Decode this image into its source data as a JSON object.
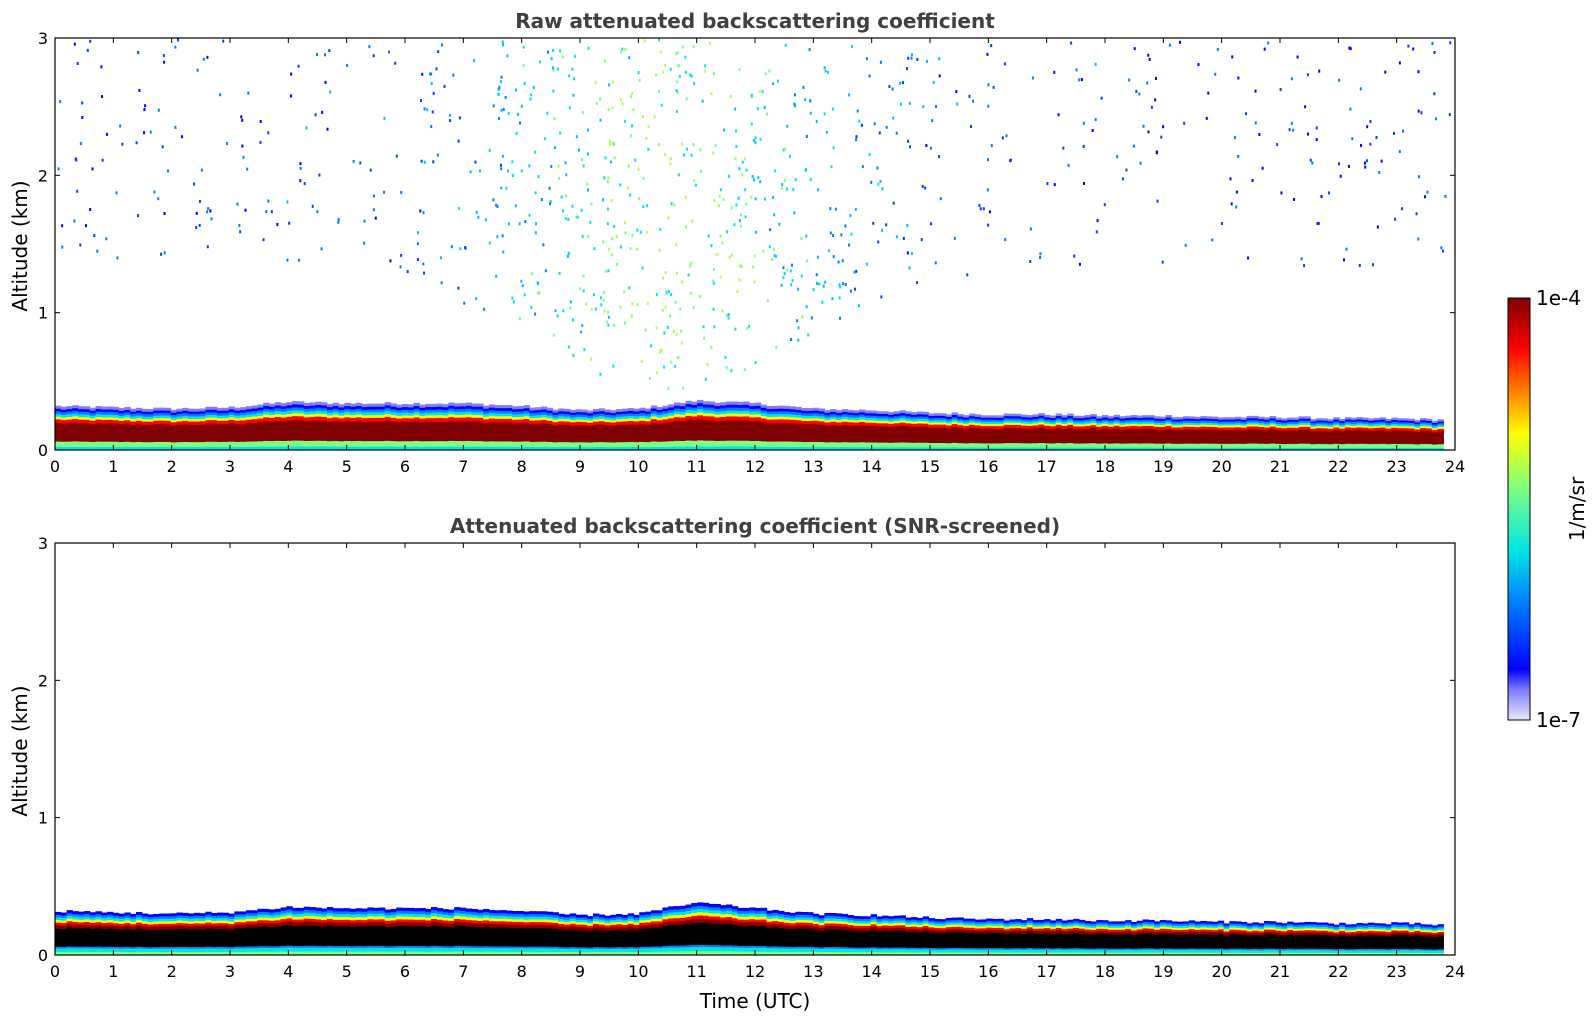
{
  "chart_data": [
    {
      "type": "heatmap",
      "title": "Raw attenuated backscattering coefficient",
      "xlabel": "",
      "ylabel": "Altitude (km)",
      "xlim": [
        0,
        24
      ],
      "ylim": [
        0,
        3
      ],
      "xticks": [
        "0",
        "1",
        "2",
        "3",
        "4",
        "5",
        "6",
        "7",
        "8",
        "9",
        "10",
        "11",
        "12",
        "13",
        "14",
        "15",
        "16",
        "17",
        "18",
        "19",
        "20",
        "21",
        "22",
        "23",
        "24"
      ],
      "yticks": [
        "0",
        "1",
        "2",
        "3"
      ],
      "layer_profile": {
        "time": [
          0,
          1,
          2,
          3,
          4,
          5,
          6,
          7,
          8,
          9,
          10,
          11,
          12,
          13,
          14,
          15,
          16,
          17,
          18,
          19,
          20,
          21,
          22,
          23,
          23.8
        ],
        "top_km": [
          0.32,
          0.31,
          0.3,
          0.31,
          0.35,
          0.34,
          0.34,
          0.34,
          0.32,
          0.29,
          0.3,
          0.36,
          0.34,
          0.3,
          0.29,
          0.27,
          0.26,
          0.26,
          0.25,
          0.25,
          0.24,
          0.24,
          0.23,
          0.23,
          0.22
        ]
      },
      "scatter_aloft": "noise speckles between 0.4 and 3 km, densest 8-13 UTC",
      "colorbar": {
        "label": "1/m/sr",
        "min_label": "1e-7",
        "max_label": "1e-4",
        "scale": "log",
        "colormap": "jet"
      }
    },
    {
      "type": "heatmap",
      "title": "Attenuated backscattering coefficient (SNR-screened)",
      "xlabel": "Time (UTC)",
      "ylabel": "Altitude (km)",
      "xlim": [
        0,
        24
      ],
      "ylim": [
        0,
        3
      ],
      "xticks": [
        "0",
        "1",
        "2",
        "3",
        "4",
        "5",
        "6",
        "7",
        "8",
        "9",
        "10",
        "11",
        "12",
        "13",
        "14",
        "15",
        "16",
        "17",
        "18",
        "19",
        "20",
        "21",
        "22",
        "23",
        "24"
      ],
      "yticks": [
        "0",
        "1",
        "2",
        "3"
      ],
      "layer_profile": {
        "time": [
          0,
          1,
          2,
          3,
          4,
          5,
          6,
          7,
          8,
          9,
          10,
          11,
          12,
          13,
          14,
          15,
          16,
          17,
          18,
          19,
          20,
          21,
          22,
          23,
          23.8
        ],
        "top_km": [
          0.32,
          0.31,
          0.3,
          0.31,
          0.35,
          0.34,
          0.34,
          0.34,
          0.32,
          0.29,
          0.3,
          0.38,
          0.34,
          0.3,
          0.29,
          0.27,
          0.26,
          0.26,
          0.25,
          0.25,
          0.24,
          0.24,
          0.23,
          0.23,
          0.22
        ]
      },
      "saturated_core_color": "#000000"
    }
  ],
  "colors": {
    "jet": [
      "#e6e6f5",
      "#0000ff",
      "#0080ff",
      "#00e5e5",
      "#7fff7f",
      "#ffff00",
      "#ff8000",
      "#ff0000",
      "#800000"
    ],
    "title_color": "#404040"
  }
}
